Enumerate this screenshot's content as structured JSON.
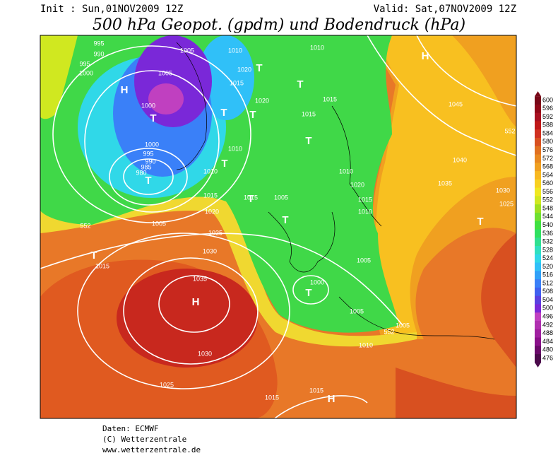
{
  "header": {
    "init": "Init : Sun,01NOV2009 12Z",
    "valid": "Valid: Sat,07NOV2009 12Z",
    "title": "500 hPa Geopot. (gpdm) und Bodendruck (hPa)"
  },
  "map": {
    "labels": [
      "995",
      "990",
      "995",
      "1000",
      "1005",
      "1005",
      "1000",
      "1000",
      "995",
      "990",
      "985",
      "980",
      "1010",
      "1010",
      "1020",
      "1015",
      "1020",
      "1015",
      "1015",
      "1045",
      "1040",
      "1035",
      "1030",
      "1025",
      "1010",
      "1010",
      "1015",
      "1015",
      "1005",
      "1020",
      "1005",
      "1025",
      "1030",
      "1015",
      "1035",
      "1030",
      "1025",
      "1015",
      "1015",
      "1010",
      "1005",
      "1005",
      "1000",
      "1005",
      "1010",
      "1020",
      "1015",
      "1010",
      "552",
      "552",
      "552"
    ],
    "centers": [
      "H",
      "H",
      "T",
      "T",
      "T",
      "T",
      "T",
      "T",
      "T",
      "T",
      "T",
      "T",
      "H",
      "T",
      "H",
      "T",
      "T"
    ]
  },
  "colorbar": {
    "levels": [
      600,
      596,
      592,
      588,
      584,
      580,
      576,
      572,
      568,
      564,
      560,
      556,
      552,
      548,
      544,
      540,
      536,
      532,
      528,
      524,
      520,
      516,
      512,
      508,
      504,
      500,
      496,
      492,
      488,
      484,
      480,
      476
    ],
    "colors": [
      "#780818",
      "#900818",
      "#a81020",
      "#c01818",
      "#d03020",
      "#d85020",
      "#e07020",
      "#e88820",
      "#f0a020",
      "#f8b820",
      "#f8d020",
      "#f0e820",
      "#d0e820",
      "#a0e020",
      "#70e030",
      "#40e040",
      "#30e060",
      "#30e090",
      "#30e0c0",
      "#30d8e8",
      "#30c0f8",
      "#30a0f8",
      "#3a80f8",
      "#4060f0",
      "#5a40e0",
      "#7a28d8",
      "#c040c0",
      "#b030b0",
      "#a020a0",
      "#8a108a",
      "#6a0a6a",
      "#4b0a4b"
    ]
  },
  "footer": {
    "source": "Daten: ECMWF",
    "copyright": "(C) Wetterzentrale",
    "url": "www.wetterzentrale.de"
  }
}
